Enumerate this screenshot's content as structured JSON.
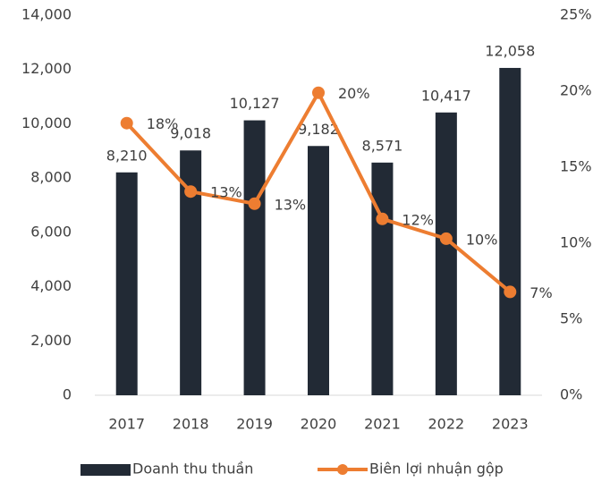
{
  "chart_data": {
    "type": "bar-line",
    "categories": [
      "2017",
      "2018",
      "2019",
      "2020",
      "2021",
      "2022",
      "2023"
    ],
    "series": [
      {
        "name": "Doanh thu thuần",
        "color": "#222a35",
        "type": "bar",
        "values": [
          8210,
          9018,
          10127,
          9182,
          8571,
          10417,
          12058
        ],
        "value_labels": [
          "8,210",
          "9,018",
          "10,127",
          "9,182",
          "8,571",
          "10,417",
          "12,058"
        ]
      },
      {
        "name": "Biên lợi nhuận gộp",
        "color": "#ed7d31",
        "type": "line",
        "axis": "y2",
        "values": [
          17.9,
          13.4,
          12.6,
          19.9,
          11.6,
          10.3,
          6.8
        ],
        "value_labels": [
          "18%",
          "13%",
          "13%",
          "20%",
          "12%",
          "10%",
          "7%"
        ]
      }
    ],
    "ylim": [
      0,
      14000
    ],
    "yticks": [
      0,
      {
        "value": 2000,
        "label": "2,000"
      },
      {
        "value": 4000,
        "label": "4,000"
      },
      {
        "value": 6000,
        "label": "6,000"
      },
      {
        "value": 8000,
        "label": "8,000"
      },
      {
        "value": 10000,
        "label": "10,000"
      },
      {
        "value": 12000,
        "label": "12,000"
      },
      {
        "value": 14000,
        "label": "14,000"
      }
    ],
    "y2lim": [
      0,
      25
    ],
    "y2ticks": [
      {
        "value": 0,
        "label": "0%"
      },
      {
        "value": 5,
        "label": "5%"
      },
      {
        "value": 10,
        "label": "10%"
      },
      {
        "value": 15,
        "label": "15%"
      },
      {
        "value": 20,
        "label": "20%"
      },
      {
        "value": 25,
        "label": "25%"
      }
    ],
    "legend": "bottom"
  }
}
